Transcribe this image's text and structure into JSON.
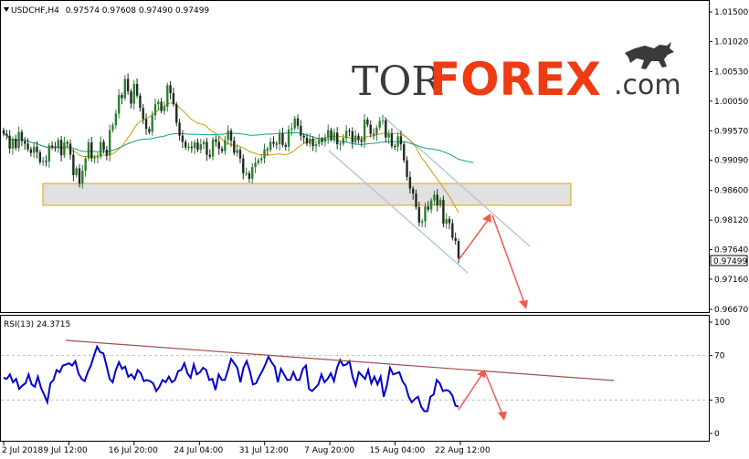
{
  "chart_data": [
    {
      "type": "candlestick",
      "symbol": "USDCHF,H4",
      "ohlc_label": "0.97574 0.97608 0.97490 0.97499",
      "last_price_label": "0.97499",
      "y_ticks": [
        "1.01500",
        "1.01020",
        "1.00530",
        "1.00050",
        "0.99570",
        "0.99090",
        "0.98600",
        "0.98120",
        "0.97640",
        "0.97160",
        "0.96670"
      ],
      "x_ticks": [
        "2 Jul 2018",
        "9 Jul 12:00",
        "16 Jul 20:00",
        "24 Jul 04:00",
        "31 Jul 12:00",
        "7 Aug 20:00",
        "15 Aug 04:00",
        "22 Aug 12:00"
      ],
      "ylim": [
        0.9667,
        1.015
      ],
      "close": [
        0.9952,
        0.9949,
        0.9928,
        0.9944,
        0.9929,
        0.9955,
        0.994,
        0.9936,
        0.9927,
        0.9921,
        0.9931,
        0.9922,
        0.9906,
        0.9908,
        0.9907,
        0.9933,
        0.993,
        0.9929,
        0.9942,
        0.9917,
        0.9938,
        0.9936,
        0.9918,
        0.9885,
        0.9896,
        0.9871,
        0.9892,
        0.9912,
        0.9938,
        0.9912,
        0.9914,
        0.9915,
        0.9939,
        0.9926,
        0.9917,
        0.9958,
        0.9966,
        0.9985,
        1.0015,
        1.001,
        1.0041,
        1.0021,
        1.0001,
        1.0033,
        1.0014,
        0.9994,
        0.9976,
        0.996,
        0.9955,
        0.9982,
        1.0,
        1.0004,
        0.9989,
        0.9996,
        1.0031,
        1.0018,
        1.0,
        0.997,
        0.9949,
        0.9939,
        0.993,
        0.9931,
        0.9929,
        0.9938,
        0.9926,
        0.9935,
        0.9939,
        0.9918,
        0.9915,
        0.9943,
        0.9939,
        0.9928,
        0.9924,
        0.9942,
        0.9957,
        0.9941,
        0.9921,
        0.9926,
        0.9912,
        0.9888,
        0.9888,
        0.9879,
        0.9898,
        0.9905,
        0.9909,
        0.9912,
        0.9927,
        0.9926,
        0.9939,
        0.9936,
        0.9935,
        0.9953,
        0.9934,
        0.9931,
        0.9959,
        0.9961,
        0.9977,
        0.9965,
        0.9949,
        0.9946,
        0.9936,
        0.9944,
        0.9932,
        0.9935,
        0.9943,
        0.9939,
        0.9946,
        0.9958,
        0.9943,
        0.9954,
        0.9935,
        0.9936,
        0.9945,
        0.9957,
        0.9956,
        0.9938,
        0.9949,
        0.9942,
        0.9939,
        0.9975,
        0.9967,
        0.9952,
        0.9951,
        0.9962,
        0.9973,
        0.9974,
        0.9946,
        0.9952,
        0.9932,
        0.9931,
        0.9948,
        0.9935,
        0.9909,
        0.9882,
        0.9863,
        0.9855,
        0.9833,
        0.9808,
        0.981,
        0.9834,
        0.9829,
        0.9844,
        0.9853,
        0.9836,
        0.9845,
        0.9806,
        0.9814,
        0.9807,
        0.9783,
        0.9778,
        0.975
      ]
    },
    {
      "type": "line",
      "indicator": "RSI(13) 24.3715",
      "y_ticks": [
        "100",
        "70",
        "30",
        "0"
      ],
      "ylim": [
        0,
        100
      ],
      "levels": [
        70,
        30
      ],
      "values": [
        50,
        49,
        53,
        46,
        49,
        40,
        43,
        45,
        53,
        44,
        42,
        51,
        41,
        35,
        28,
        45,
        48,
        57,
        55,
        61,
        62,
        63,
        61,
        65,
        54,
        49,
        47,
        55,
        61,
        70,
        78,
        73,
        72,
        61,
        49,
        46,
        57,
        64,
        58,
        60,
        51,
        53,
        49,
        57,
        54,
        47,
        48,
        47,
        45,
        38,
        42,
        48,
        46,
        51,
        46,
        48,
        56,
        57,
        63,
        54,
        50,
        62,
        53,
        55,
        59,
        57,
        48,
        49,
        39,
        53,
        48,
        48,
        57,
        67,
        63,
        59,
        46,
        59,
        65,
        56,
        44,
        45,
        51,
        56,
        62,
        69,
        64,
        60,
        46,
        58,
        53,
        48,
        48,
        55,
        48,
        48,
        58,
        61,
        40,
        38,
        41,
        44,
        53,
        46,
        49,
        54,
        47,
        59,
        66,
        61,
        62,
        65,
        51,
        43,
        55,
        52,
        49,
        57,
        45,
        51,
        44,
        51,
        33,
        43,
        59,
        53,
        54,
        55,
        47,
        43,
        33,
        28,
        31,
        33,
        24,
        20,
        20,
        33,
        35,
        48,
        45,
        38,
        39,
        38,
        34,
        25,
        24
      ]
    }
  ],
  "logo": {
    "tor": "TOR",
    "forex": "FOREX",
    "com": ".com"
  },
  "colors": {
    "bull": "#2e7d32",
    "bear": "#1e2c1e",
    "ma_short": "#c8a000",
    "ma_long": "#14a08c",
    "rsi_line": "#0000cc",
    "forecast": "#f05a50",
    "channel": "#b4c8dc",
    "zone": "#dcdcdc"
  },
  "icons": {
    "symbol_menu": "triangle-down-icon",
    "logo": "bull-icon"
  }
}
